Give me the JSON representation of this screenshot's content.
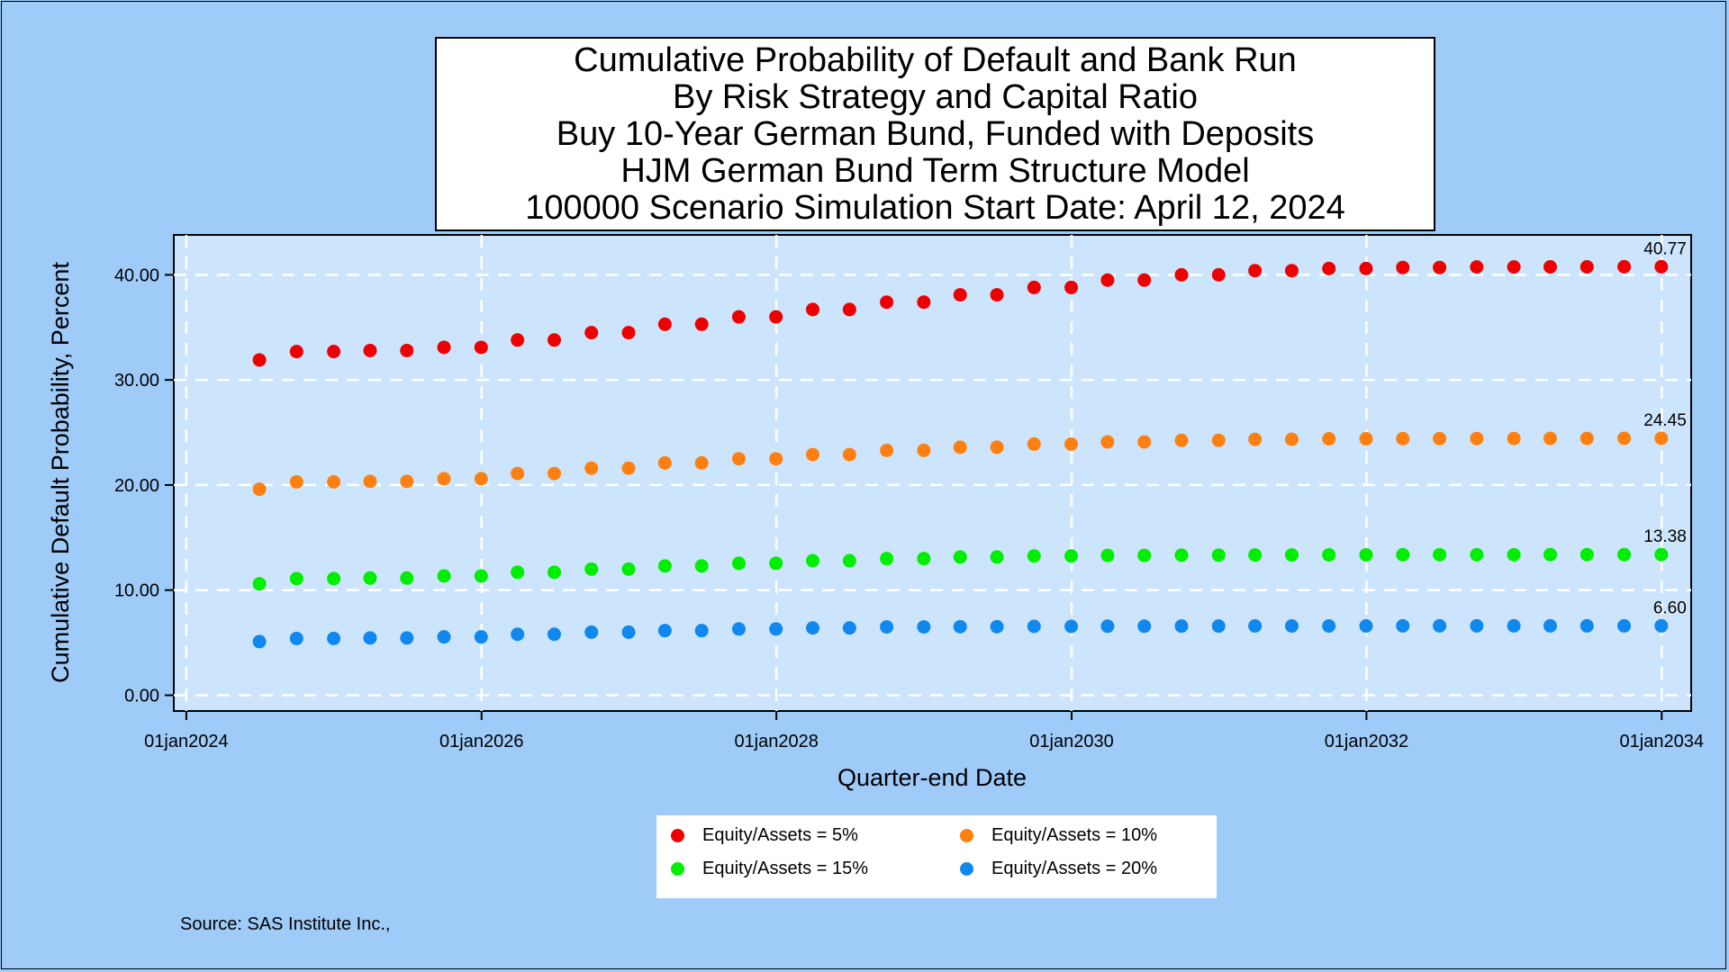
{
  "title_lines": [
    "Cumulative Probability of Default and Bank Run",
    "By Risk Strategy and Capital Ratio",
    "Buy 10-Year German Bund, Funded with Deposits",
    "HJM German Bund Term Structure Model",
    "100000 Scenario Simulation Start Date: April 12, 2024"
  ],
  "footnote": "Source: SAS Institute Inc.,",
  "chart_data": {
    "type": "scatter",
    "xlabel": "Quarter-end Date",
    "ylabel": "Cumulative Default Probability, Percent",
    "x_ticks": [
      "01jan2024",
      "01jan2026",
      "01jan2028",
      "01jan2030",
      "01jan2032",
      "01jan2034"
    ],
    "y_ticks": [
      "0.00",
      "10.00",
      "20.00",
      "30.00",
      "40.00"
    ],
    "ylim": [
      -1.5,
      43.8
    ],
    "xlim": [
      "2023-12-01",
      "2034-03-15"
    ],
    "grid": true,
    "legend_position": "bottom",
    "x": [
      "2024-06-30",
      "2024-09-30",
      "2024-12-31",
      "2025-03-31",
      "2025-06-30",
      "2025-09-30",
      "2025-12-31",
      "2026-03-31",
      "2026-06-30",
      "2026-09-30",
      "2026-12-31",
      "2027-03-31",
      "2027-06-30",
      "2027-09-30",
      "2027-12-31",
      "2028-03-31",
      "2028-06-30",
      "2028-09-30",
      "2028-12-31",
      "2029-03-31",
      "2029-06-30",
      "2029-09-30",
      "2029-12-31",
      "2030-03-31",
      "2030-06-30",
      "2030-09-30",
      "2030-12-31",
      "2031-03-31",
      "2031-06-30",
      "2031-09-30",
      "2031-12-31",
      "2032-03-31",
      "2032-06-30",
      "2032-09-30",
      "2032-12-31",
      "2033-03-31",
      "2033-06-30",
      "2033-09-30",
      "2033-12-31"
    ],
    "series": [
      {
        "name": "Equity/Assets = 5%",
        "color": "#ee0000",
        "end_label": "40.77",
        "values": [
          31.9,
          32.7,
          32.7,
          32.8,
          32.8,
          33.1,
          33.1,
          33.8,
          33.8,
          34.5,
          34.5,
          35.3,
          35.3,
          36.0,
          36.0,
          36.7,
          36.7,
          37.4,
          37.4,
          38.1,
          38.1,
          38.8,
          38.8,
          39.5,
          39.5,
          40.0,
          40.0,
          40.4,
          40.4,
          40.6,
          40.6,
          40.7,
          40.7,
          40.75,
          40.75,
          40.76,
          40.76,
          40.77,
          40.77
        ]
      },
      {
        "name": "Equity/Assets = 10%",
        "color": "#ff8010",
        "end_label": "24.45",
        "values": [
          19.6,
          20.3,
          20.3,
          20.35,
          20.35,
          20.6,
          20.6,
          21.1,
          21.1,
          21.6,
          21.6,
          22.1,
          22.1,
          22.5,
          22.5,
          22.9,
          22.9,
          23.3,
          23.3,
          23.6,
          23.6,
          23.9,
          23.9,
          24.1,
          24.1,
          24.25,
          24.25,
          24.35,
          24.35,
          24.4,
          24.4,
          24.42,
          24.42,
          24.43,
          24.43,
          24.44,
          24.44,
          24.45,
          24.45
        ]
      },
      {
        "name": "Equity/Assets = 15%",
        "color": "#00ee00",
        "end_label": "13.38",
        "values": [
          10.6,
          11.1,
          11.1,
          11.15,
          11.15,
          11.35,
          11.35,
          11.7,
          11.7,
          12.0,
          12.0,
          12.3,
          12.3,
          12.55,
          12.55,
          12.8,
          12.8,
          13.0,
          13.0,
          13.15,
          13.15,
          13.25,
          13.25,
          13.3,
          13.3,
          13.33,
          13.33,
          13.35,
          13.35,
          13.36,
          13.36,
          13.37,
          13.37,
          13.37,
          13.37,
          13.38,
          13.38,
          13.38,
          13.38
        ]
      },
      {
        "name": "Equity/Assets = 20%",
        "color": "#1188ee",
        "end_label": "6.60",
        "values": [
          5.1,
          5.4,
          5.4,
          5.45,
          5.45,
          5.55,
          5.55,
          5.8,
          5.8,
          6.0,
          6.0,
          6.15,
          6.15,
          6.3,
          6.3,
          6.4,
          6.4,
          6.5,
          6.5,
          6.52,
          6.52,
          6.55,
          6.55,
          6.57,
          6.57,
          6.58,
          6.58,
          6.59,
          6.59,
          6.59,
          6.59,
          6.6,
          6.6,
          6.6,
          6.6,
          6.6,
          6.6,
          6.6,
          6.6
        ]
      }
    ]
  }
}
